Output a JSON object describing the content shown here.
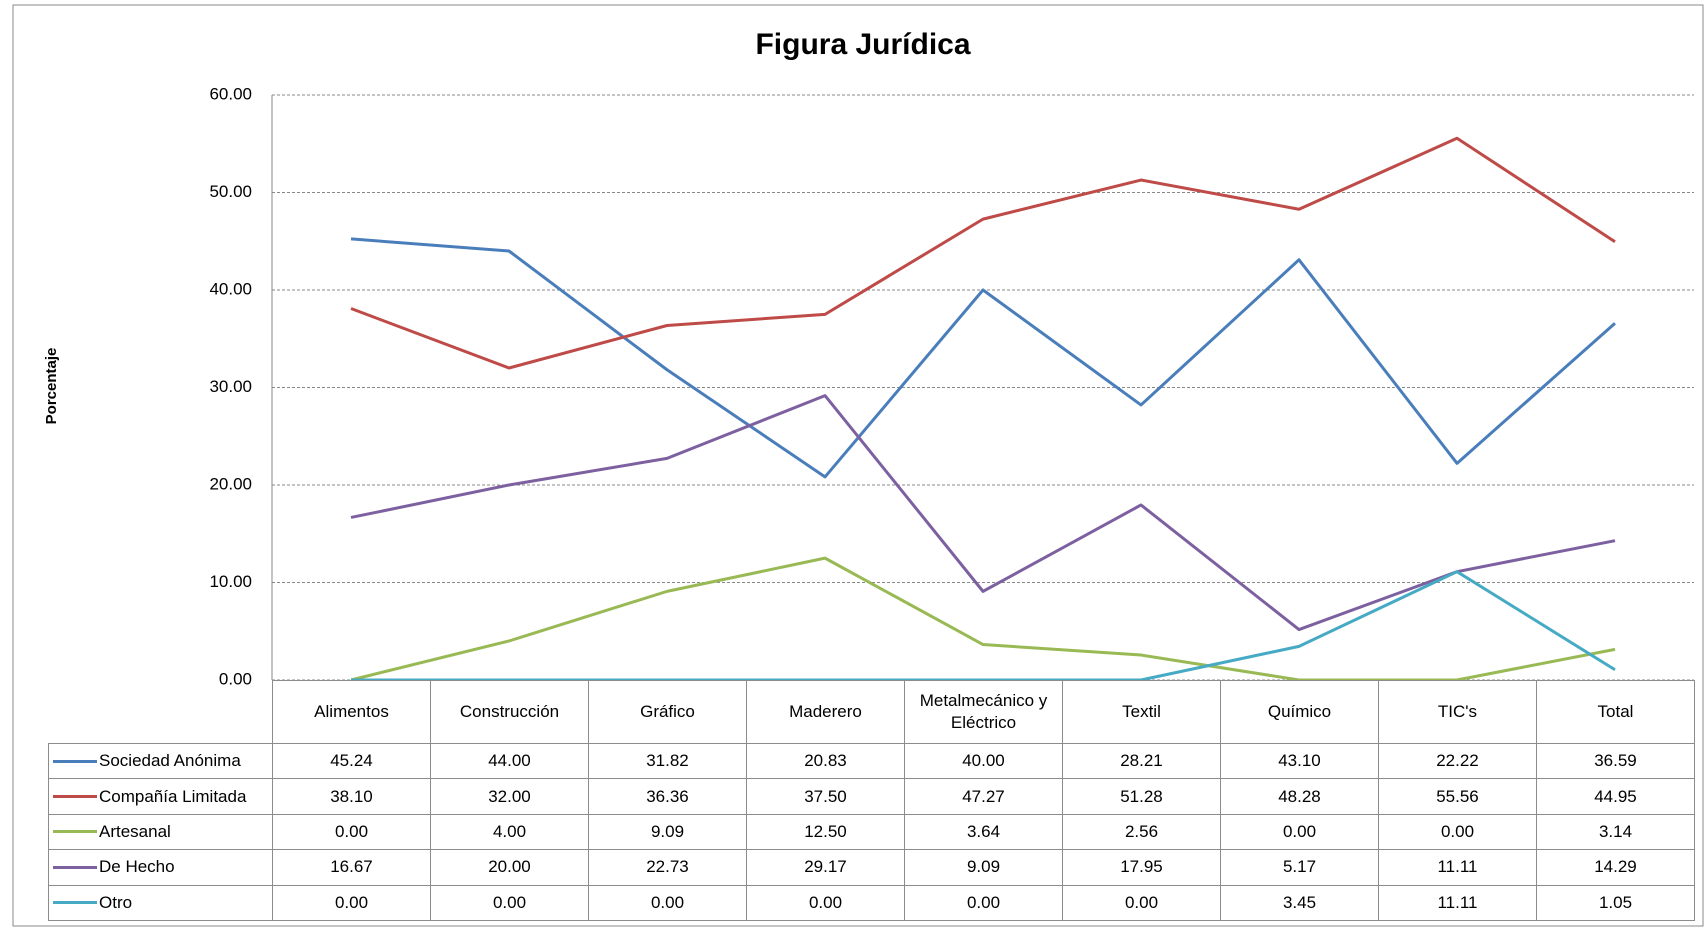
{
  "chart_data": {
    "type": "line",
    "title": "Figura Jurídica",
    "y_label": "Porcentaje",
    "categories": [
      "Alimentos",
      "Construcción",
      "Gráfico",
      "Maderero",
      "Metalmecánico y Eléctrico",
      "Textil",
      "Químico",
      "TIC's",
      "Total"
    ],
    "series": [
      {
        "name": "Sociedad Anónima",
        "color": "#4a7ebb",
        "values": [
          45.24,
          44,
          31.82,
          20.83,
          40,
          28.21,
          43.1,
          22.22,
          36.59
        ],
        "value_labels": [
          "45.24",
          "44.00",
          "31.82",
          "20.83",
          "40.00",
          "28.21",
          "43.10",
          "22.22",
          "36.59"
        ]
      },
      {
        "name": "Compañía Limitada",
        "color": "#be4b48",
        "values": [
          38.1,
          32,
          36.36,
          37.5,
          47.27,
          51.28,
          48.28,
          55.56,
          44.95
        ],
        "value_labels": [
          "38.10",
          "32.00",
          "36.36",
          "37.50",
          "47.27",
          "51.28",
          "48.28",
          "55.56",
          "44.95"
        ]
      },
      {
        "name": "Artesanal",
        "color": "#98b954",
        "values": [
          0,
          4,
          9.09,
          12.5,
          3.64,
          2.56,
          0,
          0,
          3.14
        ],
        "value_labels": [
          "0.00",
          "4.00",
          "9.09",
          "12.50",
          "3.64",
          "2.56",
          "0.00",
          "0.00",
          "3.14"
        ]
      },
      {
        "name": "De Hecho",
        "color": "#7d60a0",
        "values": [
          16.67,
          20,
          22.73,
          29.17,
          9.09,
          17.95,
          5.17,
          11.11,
          14.29
        ],
        "value_labels": [
          "16.67",
          "20.00",
          "22.73",
          "29.17",
          "9.09",
          "17.95",
          "5.17",
          "11.11",
          "14.29"
        ]
      },
      {
        "name": "Otro",
        "color": "#46aac5",
        "values": [
          0,
          0,
          0,
          0,
          0,
          0,
          3.45,
          11.11,
          1.05
        ],
        "value_labels": [
          "0.00",
          "0.00",
          "0.00",
          "0.00",
          "0.00",
          "0.00",
          "3.45",
          "11.11",
          "1.05"
        ]
      }
    ],
    "ylim": [
      0,
      60
    ],
    "yticks": [
      {
        "value": 0,
        "label": "0.00"
      },
      {
        "value": 10,
        "label": "10.00"
      },
      {
        "value": 20,
        "label": "20.00"
      },
      {
        "value": 30,
        "label": "30.00"
      },
      {
        "value": 40,
        "label": "40.00"
      },
      {
        "value": 50,
        "label": "50.00"
      },
      {
        "value": 60,
        "label": "60.00"
      }
    ],
    "grid": true,
    "data_table": true
  }
}
